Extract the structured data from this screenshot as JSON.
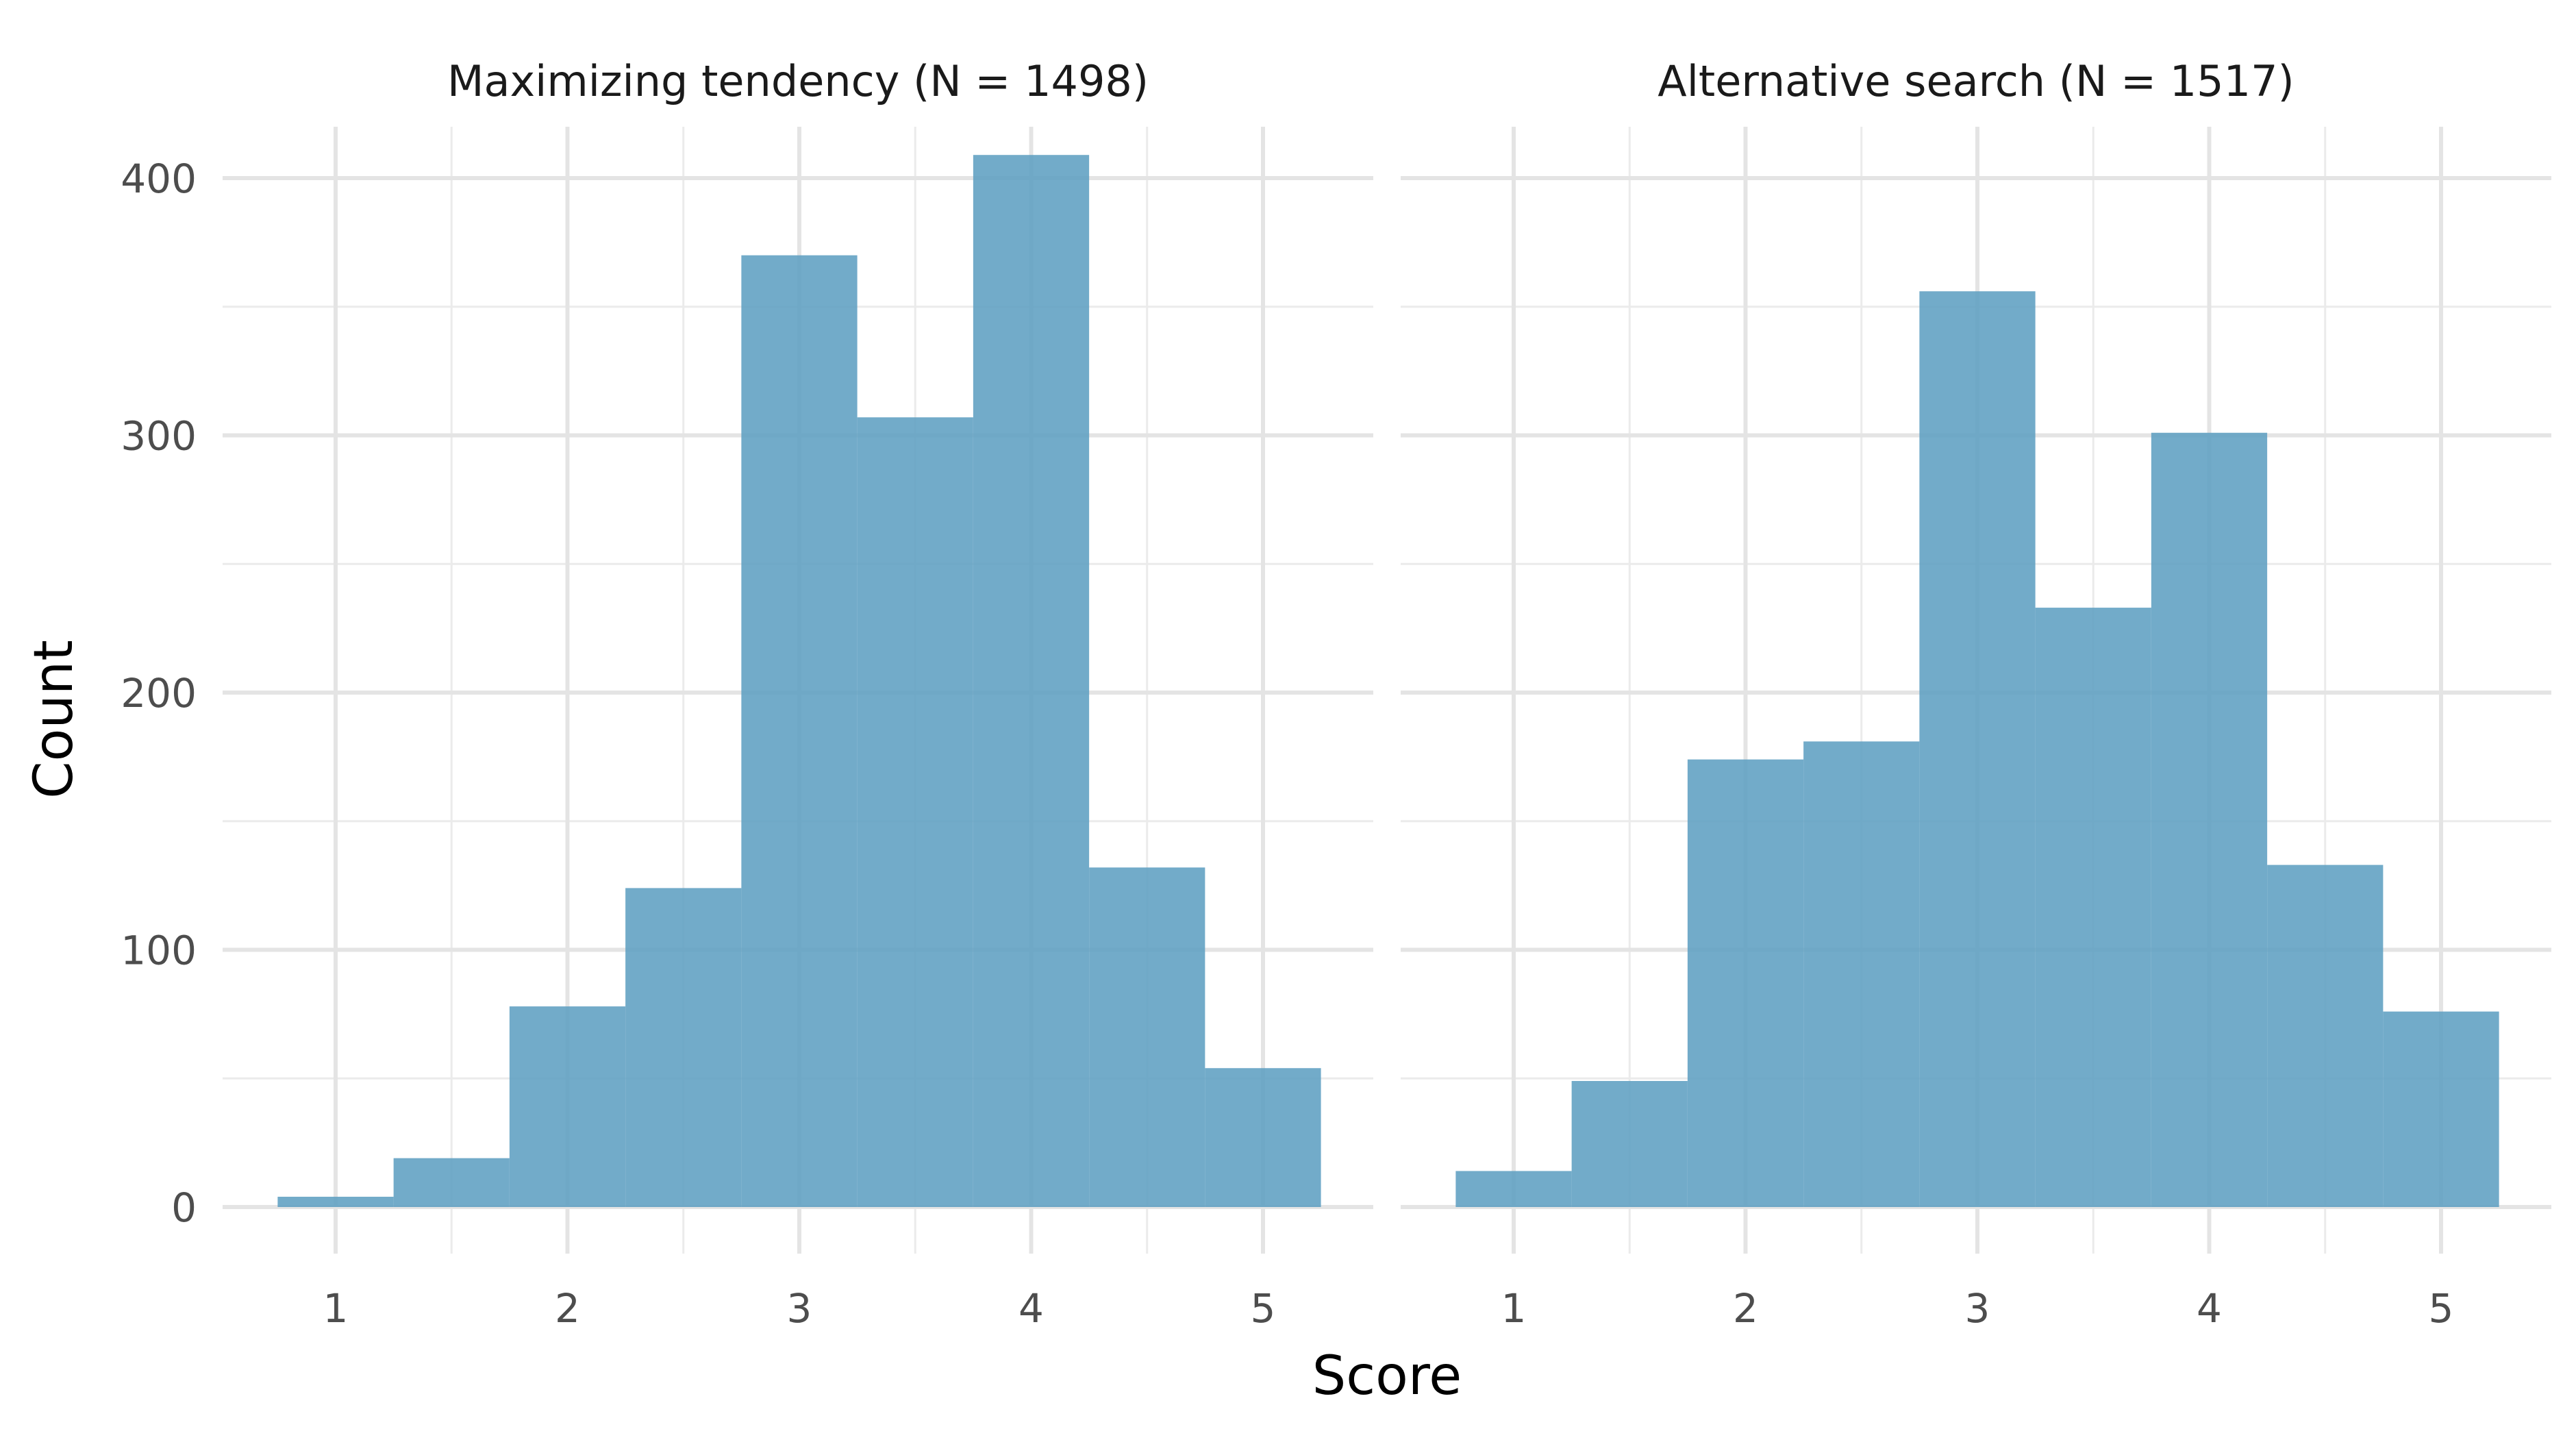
{
  "chart_data": {
    "type": "bar",
    "xlabel": "Score",
    "ylabel": "Count",
    "xlim": [
      0.5,
      5.5
    ],
    "ylim": [
      -20,
      425
    ],
    "x_ticks": [
      "1",
      "2",
      "3",
      "4",
      "5"
    ],
    "y_ticks": [
      "0",
      "100",
      "200",
      "300",
      "400"
    ],
    "grid": true,
    "bin_width": 0.5,
    "bar_color": "#5e9fc1",
    "panels": [
      {
        "title": "Maximizing tendency (N = 1498)",
        "bins": [
          1,
          1.5,
          2,
          2.5,
          3,
          3.5,
          4,
          4.5,
          5
        ],
        "values": [
          4,
          19,
          78,
          124,
          370,
          307,
          409,
          132,
          54
        ]
      },
      {
        "title": "Alternative search (N = 1517)",
        "bins": [
          1,
          1.5,
          2,
          2.5,
          3,
          3.5,
          4,
          4.5,
          5
        ],
        "values": [
          14,
          49,
          174,
          181,
          356,
          233,
          301,
          133,
          76
        ]
      }
    ]
  }
}
